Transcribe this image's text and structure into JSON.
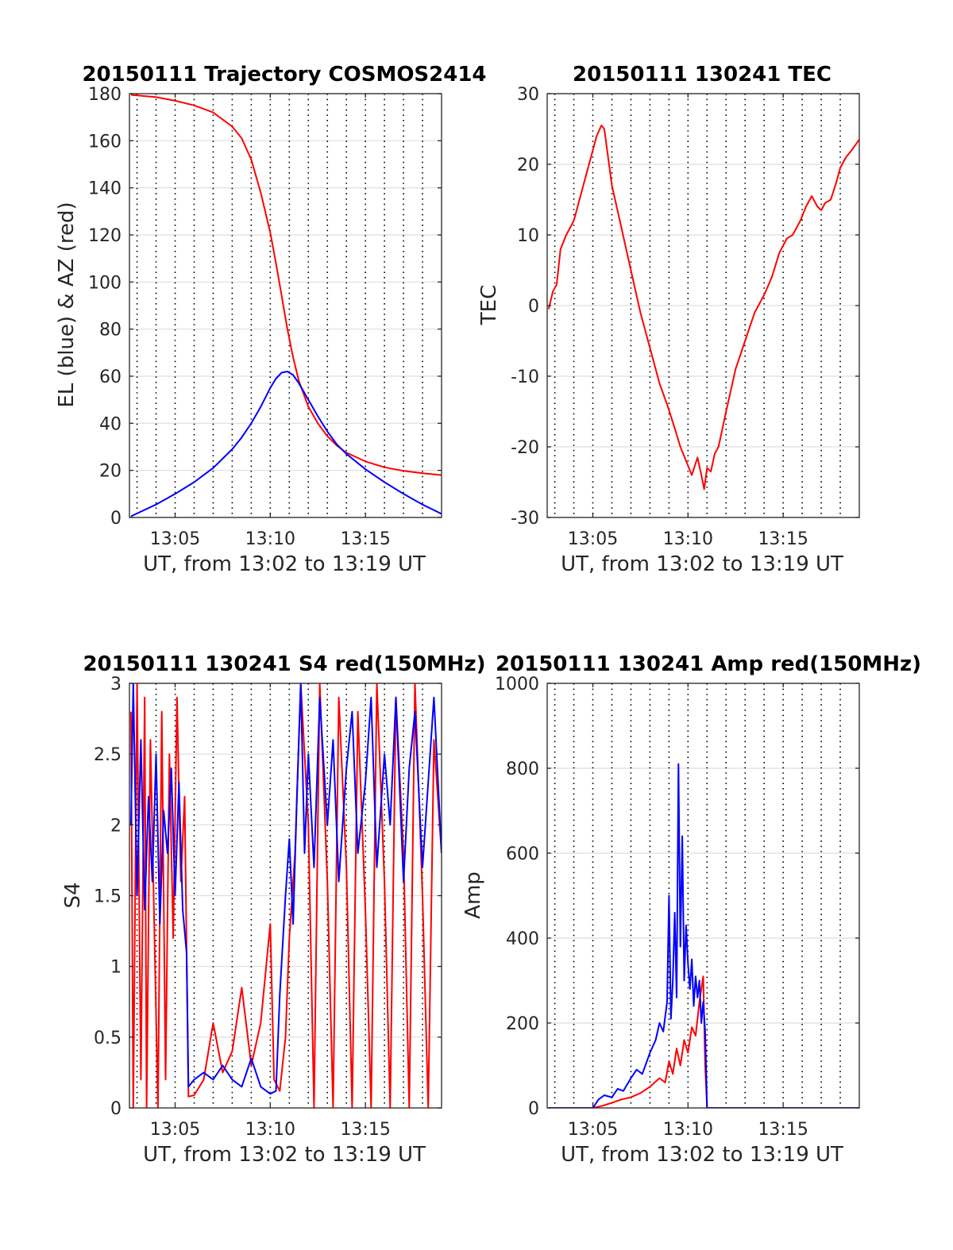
{
  "chart_data": [
    {
      "type": "line",
      "title": "20150111 Trajectory COSMOS2414",
      "xlabel": "UT, from 13:02 to 13:19 UT",
      "ylabel": "EL (blue) & AZ (red)",
      "xlim": [
        2.6,
        19.0
      ],
      "ylim": [
        0,
        180
      ],
      "xticks": [
        5,
        10,
        15
      ],
      "xtick_labels": [
        "13:05",
        "13:10",
        "13:15"
      ],
      "yticks": [
        0,
        20,
        40,
        60,
        80,
        100,
        120,
        140,
        160,
        180
      ],
      "ytick_labels": [
        "0",
        "20",
        "40",
        "60",
        "80",
        "100",
        "120",
        "140",
        "160",
        "180"
      ],
      "grid": true,
      "minute_gridlines": [
        3,
        4,
        5,
        6,
        7,
        8,
        9,
        10,
        11,
        12,
        13,
        14,
        15,
        16,
        17,
        18
      ],
      "series": [
        {
          "color": "#ff0000",
          "x": [
            2.68,
            4,
            5,
            6,
            7,
            8,
            8.5,
            9,
            9.5,
            10,
            10.3,
            10.6,
            10.9,
            11.2,
            11.5,
            12,
            12.5,
            13,
            13.5,
            14,
            15,
            16,
            17,
            18,
            19
          ],
          "y": [
            179.5,
            178.5,
            177,
            175,
            172,
            166,
            161,
            152,
            138,
            121,
            108,
            94,
            80,
            68,
            58,
            47,
            40,
            34.5,
            30.5,
            27.5,
            23.8,
            21.3,
            19.8,
            18.8,
            18
          ]
        },
        {
          "color": "#0000ff",
          "x": [
            2.68,
            4,
            5,
            6,
            7,
            8,
            8.5,
            9,
            9.5,
            10,
            10.3,
            10.6,
            10.9,
            11.2,
            11.5,
            12,
            12.5,
            13,
            13.5,
            14,
            15,
            16,
            17,
            18,
            19
          ],
          "y": [
            0.5,
            5.5,
            10,
            15,
            21,
            29,
            34,
            40,
            47,
            55,
            59,
            61.5,
            62,
            60.5,
            57,
            50,
            43,
            36.5,
            31,
            27,
            20.5,
            15,
            10,
            5.5,
            1.5
          ]
        }
      ]
    },
    {
      "type": "line",
      "title": "20150111 130241 TEC",
      "xlabel": "UT, from 13:02 to 13:19 UT",
      "ylabel": "TEC",
      "xlim": [
        2.6,
        19.0
      ],
      "ylim": [
        -30,
        30
      ],
      "xticks": [
        5,
        10,
        15
      ],
      "xtick_labels": [
        "13:05",
        "13:10",
        "13:15"
      ],
      "yticks": [
        -30,
        -20,
        -10,
        0,
        10,
        20,
        30
      ],
      "ytick_labels": [
        "-30",
        "-20",
        "-10",
        "0",
        "10",
        "20",
        "30"
      ],
      "grid": true,
      "minute_gridlines": [
        3,
        4,
        5,
        6,
        7,
        8,
        9,
        10,
        11,
        12,
        13,
        14,
        15,
        16,
        17,
        18
      ],
      "series": [
        {
          "color": "#ff0000",
          "x": [
            2.68,
            2.9,
            3.1,
            3.3,
            3.6,
            4.0,
            4.3,
            4.6,
            4.9,
            5.2,
            5.45,
            5.6,
            5.75,
            6.0,
            6.5,
            7.0,
            7.5,
            8.0,
            8.5,
            8.9,
            9.2,
            9.6,
            9.9,
            10.2,
            10.5,
            10.7,
            10.85,
            11.0,
            11.2,
            11.4,
            11.6,
            11.8,
            12.0,
            12.5,
            13.0,
            13.5,
            14.0,
            14.4,
            14.8,
            15.2,
            15.5,
            15.9,
            16.2,
            16.5,
            16.8,
            17.0,
            17.2,
            17.5,
            17.8,
            18.0,
            18.3,
            18.6,
            19.0
          ],
          "y": [
            -0.5,
            2,
            3,
            8,
            10,
            12,
            15,
            18,
            21,
            24,
            25.5,
            25,
            22,
            17,
            11,
            5,
            -1,
            -6,
            -11,
            -14,
            -16.5,
            -20,
            -22,
            -24,
            -21.5,
            -24,
            -26,
            -23,
            -23.5,
            -21,
            -20,
            -17.5,
            -15,
            -9,
            -5,
            -1,
            1.5,
            4,
            7.5,
            9.5,
            10,
            12,
            14,
            15.5,
            14,
            13.5,
            14.5,
            15,
            17.5,
            19.5,
            21,
            22,
            23.5
          ]
        }
      ]
    },
    {
      "type": "line",
      "title": "20150111 130241 S4 red(150MHz)",
      "xlabel": "UT, from 13:02 to 13:19 UT",
      "ylabel": "S4",
      "xlim": [
        2.6,
        19.0
      ],
      "ylim": [
        0,
        3
      ],
      "xticks": [
        5,
        10,
        15
      ],
      "xtick_labels": [
        "13:05",
        "13:10",
        "13:15"
      ],
      "yticks": [
        0,
        0.5,
        1,
        1.5,
        2,
        2.5,
        3
      ],
      "ytick_labels": [
        "0",
        "0.5",
        "1",
        "1.5",
        "2",
        "2.5",
        "3"
      ],
      "grid": true,
      "minute_gridlines": [
        3,
        4,
        5,
        6,
        7,
        8,
        9,
        10,
        11,
        12,
        13,
        14,
        15,
        16,
        17,
        18
      ],
      "series": [
        {
          "color": "#ff0000",
          "x": [
            2.68,
            2.8,
            3.0,
            3.2,
            3.4,
            3.5,
            3.7,
            3.9,
            4.1,
            4.3,
            4.5,
            4.7,
            4.9,
            5.1,
            5.3,
            5.5,
            5.7,
            6.0,
            6.5,
            7.0,
            7.5,
            8.0,
            8.5,
            9.0,
            9.5,
            10.0,
            10.2,
            10.5,
            10.8,
            11.0,
            11.3,
            11.6,
            12.0,
            12.3,
            12.6,
            13.0,
            13.3,
            13.6,
            14.0,
            14.3,
            14.6,
            15.0,
            15.3,
            15.6,
            16.0,
            16.3,
            16.6,
            17.0,
            17.3,
            17.6,
            18.0,
            18.3,
            18.6,
            19.0
          ],
          "y": [
            2.8,
            0,
            3.0,
            0.2,
            2.9,
            0,
            2.6,
            1.3,
            0,
            2.8,
            0.2,
            2.5,
            1.2,
            2.9,
            1.6,
            2.2,
            0.08,
            0.09,
            0.2,
            0.6,
            0.25,
            0.4,
            0.85,
            0.3,
            0.6,
            1.3,
            0.2,
            0.12,
            0.5,
            1.2,
            1.8,
            3.0,
            2.0,
            0,
            3.0,
            1.6,
            0,
            2.9,
            1.7,
            0,
            2.8,
            1.4,
            0,
            3.0,
            1.6,
            0,
            2.9,
            1.8,
            0,
            3.0,
            1.5,
            0,
            2.6,
            1.8
          ]
        },
        {
          "color": "#0000ff",
          "x": [
            2.68,
            2.8,
            3.0,
            3.2,
            3.4,
            3.6,
            3.8,
            4.0,
            4.2,
            4.4,
            4.6,
            4.8,
            5.0,
            5.2,
            5.4,
            5.6,
            5.7,
            6.0,
            6.5,
            7.0,
            7.5,
            8.0,
            8.5,
            9.0,
            9.5,
            10.0,
            10.3,
            10.5,
            10.8,
            11.0,
            11.2,
            11.4,
            11.6,
            11.8,
            12.0,
            12.3,
            12.6,
            13.0,
            13.3,
            13.6,
            14.0,
            14.3,
            14.6,
            15.0,
            15.3,
            15.6,
            16.0,
            16.3,
            16.6,
            17.0,
            17.3,
            17.6,
            18.0,
            18.3,
            18.6,
            19.0
          ],
          "y": [
            2.0,
            3.0,
            1.5,
            2.6,
            1.4,
            2.2,
            1.6,
            2.5,
            1.3,
            2.1,
            1.8,
            2.4,
            1.5,
            2.3,
            1.4,
            1.1,
            0.15,
            0.2,
            0.25,
            0.2,
            0.3,
            0.2,
            0.15,
            0.35,
            0.15,
            0.1,
            0.12,
            0.8,
            1.5,
            1.9,
            1.3,
            2.2,
            3.0,
            1.8,
            2.5,
            1.7,
            2.9,
            2.0,
            2.6,
            1.6,
            2.4,
            2.8,
            1.8,
            2.3,
            2.9,
            1.7,
            2.5,
            2.0,
            2.9,
            1.6,
            2.4,
            2.8,
            1.7,
            2.3,
            2.9,
            1.8
          ]
        }
      ]
    },
    {
      "type": "line",
      "title": "20150111 130241 Amp red(150MHz)",
      "xlabel": "UT, from 13:02 to 13:19 UT",
      "ylabel": "Amp",
      "xlim": [
        2.6,
        19.0
      ],
      "ylim": [
        0,
        1000
      ],
      "xticks": [
        5,
        10,
        15
      ],
      "xtick_labels": [
        "13:05",
        "13:10",
        "13:15"
      ],
      "yticks": [
        0,
        200,
        400,
        600,
        800,
        1000
      ],
      "ytick_labels": [
        "0",
        "200",
        "400",
        "600",
        "800",
        "1000"
      ],
      "grid": true,
      "minute_gridlines": [
        3,
        4,
        5,
        6,
        7,
        8,
        9,
        10,
        11,
        12,
        13,
        14,
        15,
        16,
        17,
        18
      ],
      "series": [
        {
          "color": "#ff0000",
          "x": [
            2.68,
            5.0,
            5.5,
            6.0,
            6.5,
            7.0,
            7.5,
            8.0,
            8.5,
            8.8,
            9.0,
            9.2,
            9.4,
            9.6,
            9.8,
            10.0,
            10.2,
            10.4,
            10.6,
            10.8,
            10.9,
            11.0,
            19.0
          ],
          "y": [
            0,
            0,
            5,
            12,
            20,
            25,
            35,
            50,
            70,
            60,
            110,
            80,
            140,
            100,
            160,
            130,
            190,
            170,
            250,
            310,
            100,
            0,
            0
          ]
        },
        {
          "color": "#0000ff",
          "x": [
            2.68,
            5.0,
            5.3,
            5.6,
            6.0,
            6.3,
            6.6,
            7.0,
            7.3,
            7.6,
            8.0,
            8.3,
            8.5,
            8.7,
            8.9,
            9.0,
            9.1,
            9.2,
            9.3,
            9.4,
            9.5,
            9.6,
            9.7,
            9.8,
            9.9,
            10.0,
            10.1,
            10.2,
            10.3,
            10.4,
            10.5,
            10.6,
            10.7,
            10.8,
            10.9,
            11.0,
            19.0
          ],
          "y": [
            0,
            0,
            20,
            30,
            25,
            45,
            40,
            70,
            90,
            80,
            130,
            160,
            200,
            180,
            250,
            500,
            210,
            300,
            460,
            260,
            810,
            380,
            640,
            300,
            430,
            340,
            280,
            350,
            240,
            310,
            260,
            300,
            200,
            250,
            180,
            0,
            0
          ]
        }
      ]
    }
  ]
}
